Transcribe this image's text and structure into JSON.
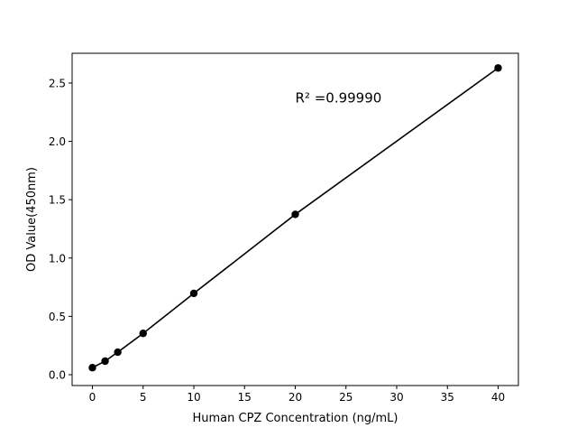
{
  "chart_data": {
    "type": "line",
    "title": "",
    "xlabel": "Human CPZ Concentration (ng/mL)",
    "ylabel": "OD Value(450nm)",
    "xlim": [
      -2.0,
      42.0
    ],
    "ylim": [
      -0.093,
      2.755
    ],
    "xticks": [
      0,
      5,
      10,
      15,
      20,
      25,
      30,
      35,
      40
    ],
    "xtick_labels": [
      "0",
      "5",
      "10",
      "15",
      "20",
      "25",
      "30",
      "35",
      "40"
    ],
    "yticks": [
      0.0,
      0.5,
      1.0,
      1.5,
      2.0,
      2.5
    ],
    "ytick_labels": [
      "0.0",
      "0.5",
      "1.0",
      "1.5",
      "2.0",
      "2.5"
    ],
    "grid": false,
    "series": [
      {
        "x": [
          0,
          1.25,
          2.5,
          5,
          10,
          20,
          40
        ],
        "y": [
          0.06,
          0.116,
          0.193,
          0.354,
          0.697,
          1.374,
          2.629
        ],
        "color": "#000000",
        "marker": "circle"
      }
    ],
    "annotation": {
      "text": "R² =0.99990",
      "x": 20,
      "y": 2.37
    }
  }
}
